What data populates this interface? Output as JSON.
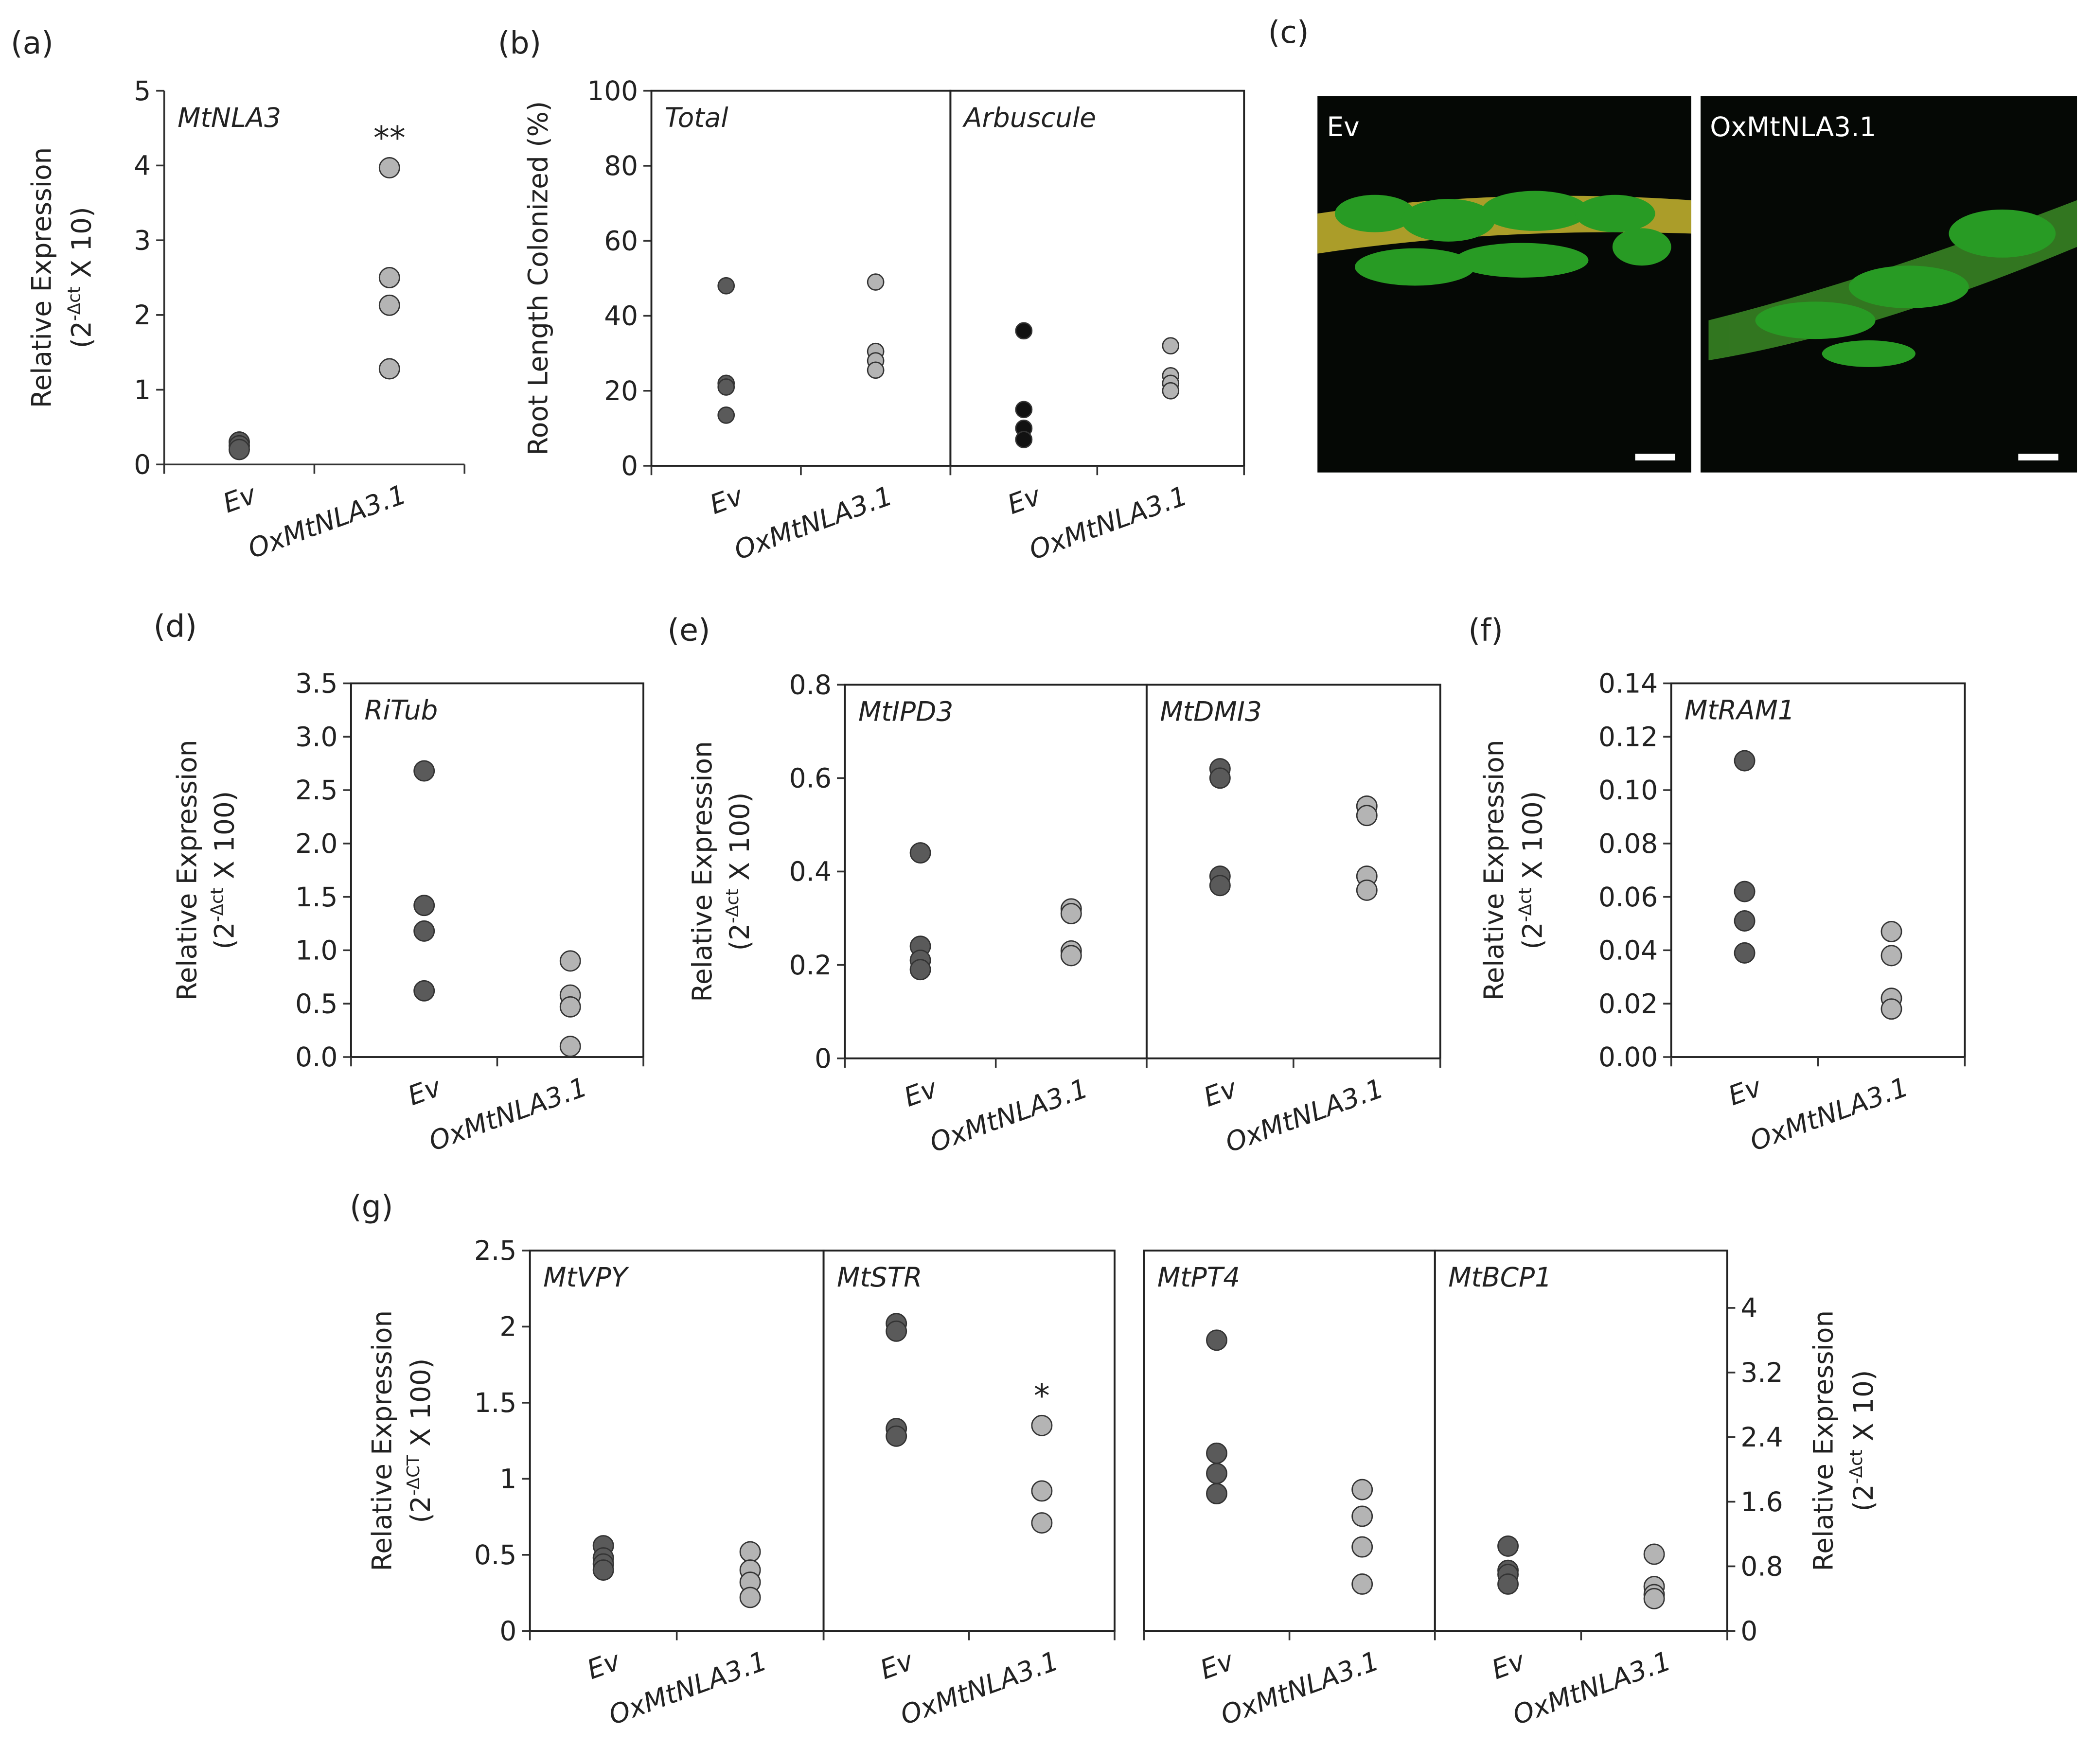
{
  "chart_data": [
    {
      "type": "strip",
      "panel_label": "(a)",
      "frame": false,
      "ylabel": {
        "line1": "Relative Expression",
        "base": "(2",
        "sup": "-Δct",
        "rest": " X 10)"
      },
      "categories": [
        "Ev",
        "OxMtNLA3.1"
      ],
      "colors": [
        "#5a5a5a",
        "#b4b4b4"
      ],
      "ylim": [
        0,
        5
      ],
      "yticks": [
        0,
        1,
        2,
        3,
        4,
        5
      ],
      "facets": [
        {
          "title": "MtNLA3",
          "values": [
            [
              0.3,
              0.25,
              0.2
            ],
            [
              3.97,
              2.5,
              2.13,
              1.28
            ]
          ],
          "significance": [
            null,
            "**"
          ]
        }
      ]
    },
    {
      "type": "strip",
      "panel_label": "(b)",
      "frame": true,
      "ylabel": {
        "line1": "Root Length Colonized (%)"
      },
      "categories": [
        "Ev",
        "OxMtNLA3.1"
      ],
      "colors": [
        "#5a5a5a",
        "#b4b4b4"
      ],
      "ylim": [
        0,
        100
      ],
      "yticks": [
        0,
        20,
        40,
        60,
        80,
        100
      ],
      "facets": [
        {
          "title": "Total",
          "values": [
            [
              48,
              22,
              21,
              13.5
            ],
            [
              49,
              30.5,
              28,
              25.5
            ]
          ]
        },
        {
          "title": "Arbuscule",
          "colors": [
            "#111111",
            "#b4b4b4"
          ],
          "values": [
            [
              36,
              15,
              10,
              7
            ],
            [
              32,
              24,
              22,
              20
            ]
          ]
        }
      ]
    },
    {
      "type": "strip",
      "panel_label": "(d)",
      "frame": true,
      "ylabel": {
        "line1": "Relative Expression",
        "base": "(2",
        "sup": "-Δct",
        "rest": " X 100)"
      },
      "categories": [
        "Ev",
        "OxMtNLA3.1"
      ],
      "colors": [
        "#5a5a5a",
        "#b4b4b4"
      ],
      "ylim": [
        0,
        3.5
      ],
      "yticks": [
        {
          "value": 0,
          "label": "0.0"
        },
        0.5,
        {
          "value": 1,
          "label": "1.0"
        },
        1.5,
        {
          "value": 2,
          "label": "2.0"
        },
        2.5,
        {
          "value": 3,
          "label": "3.0"
        },
        3.5
      ],
      "facets": [
        {
          "title": "RiTub",
          "values": [
            [
              2.68,
              1.42,
              1.18,
              0.62
            ],
            [
              0.9,
              0.58,
              0.47,
              0.1
            ]
          ]
        }
      ]
    },
    {
      "type": "strip",
      "panel_label": "(e)",
      "frame": true,
      "ylabel": {
        "line1": "Relative Expression",
        "base": "(2",
        "sup": "-Δct",
        "rest": " X 100)"
      },
      "categories": [
        "Ev",
        "OxMtNLA3.1"
      ],
      "colors": [
        "#5a5a5a",
        "#b4b4b4"
      ],
      "ylim": [
        0,
        0.8
      ],
      "yticks": [
        0,
        0.2,
        0.4,
        0.6,
        0.8
      ],
      "facets": [
        {
          "title": "MtIPD3",
          "values": [
            [
              0.44,
              0.24,
              0.21,
              0.19
            ],
            [
              0.32,
              0.31,
              0.23,
              0.22
            ]
          ]
        },
        {
          "title": "MtDMI3",
          "values": [
            [
              0.62,
              0.6,
              0.39,
              0.37
            ],
            [
              0.54,
              0.52,
              0.39,
              0.36
            ]
          ]
        }
      ]
    },
    {
      "type": "strip",
      "panel_label": "(f)",
      "frame": true,
      "ylabel": {
        "line1": "Relative Expression",
        "base": "(2",
        "sup": "-Δct",
        "rest": " X 100)"
      },
      "categories": [
        "Ev",
        "OxMtNLA3.1"
      ],
      "colors": [
        "#5a5a5a",
        "#b4b4b4"
      ],
      "ylim": [
        0,
        0.14
      ],
      "yticks": [
        {
          "value": 0,
          "label": "0.00"
        },
        {
          "value": 0.02,
          "label": "0.02"
        },
        {
          "value": 0.04,
          "label": "0.04"
        },
        {
          "value": 0.06,
          "label": "0.06"
        },
        {
          "value": 0.08,
          "label": "0.08"
        },
        {
          "value": 0.1,
          "label": "0.10"
        },
        {
          "value": 0.12,
          "label": "0.12"
        },
        {
          "value": 0.14,
          "label": "0.14"
        }
      ],
      "facets": [
        {
          "title": "MtRAM1",
          "values": [
            [
              0.111,
              0.062,
              0.051,
              0.039
            ],
            [
              0.047,
              0.038,
              0.022,
              0.018
            ]
          ]
        }
      ]
    },
    {
      "type": "strip",
      "panel_label": "(g)",
      "frame": true,
      "ylabel": {
        "line1": "Relative Expression",
        "base": "(2",
        "sup": "-ΔCT",
        "rest": " X 100)"
      },
      "y2label": {
        "line1": "Relative Expression",
        "base": "(2",
        "sup": "-Δct",
        "rest": " X 10)"
      },
      "categories": [
        "Ev",
        "OxMtNLA3.1"
      ],
      "colors": [
        "#5a5a5a",
        "#b4b4b4"
      ],
      "ylim": [
        0,
        2.5
      ],
      "yticks": [
        0,
        0.5,
        1,
        1.5,
        2,
        2.5
      ],
      "y2lim": [
        0,
        4.71
      ],
      "y2ticks": [
        0,
        0.8,
        1.6,
        2.4,
        3.2,
        4
      ],
      "facets": [
        {
          "title": "MtVPY",
          "values": [
            [
              0.56,
              0.48,
              0.44,
              0.4
            ],
            [
              0.52,
              0.4,
              0.32,
              0.22
            ]
          ]
        },
        {
          "title": "MtSTR",
          "values": [
            [
              2.02,
              1.97,
              1.33,
              1.28
            ],
            [
              1.35,
              0.92,
              0.71
            ]
          ],
          "significance": [
            null,
            "*"
          ]
        },
        {
          "title": "MtPT4",
          "axis": "y2",
          "values": [
            [
              3.6,
              2.2,
              1.95,
              1.7
            ],
            [
              1.75,
              1.42,
              1.04,
              0.58
            ]
          ]
        },
        {
          "title": "MtBCP1",
          "axis": "y2",
          "values": [
            [
              1.05,
              0.75,
              0.7,
              0.58
            ],
            [
              0.95,
              0.55,
              0.45,
              0.4
            ]
          ]
        }
      ]
    }
  ],
  "panel_c": {
    "label": "(c)",
    "images": [
      {
        "label": "Ev"
      },
      {
        "label": "OxMtNLA3.1"
      }
    ]
  }
}
